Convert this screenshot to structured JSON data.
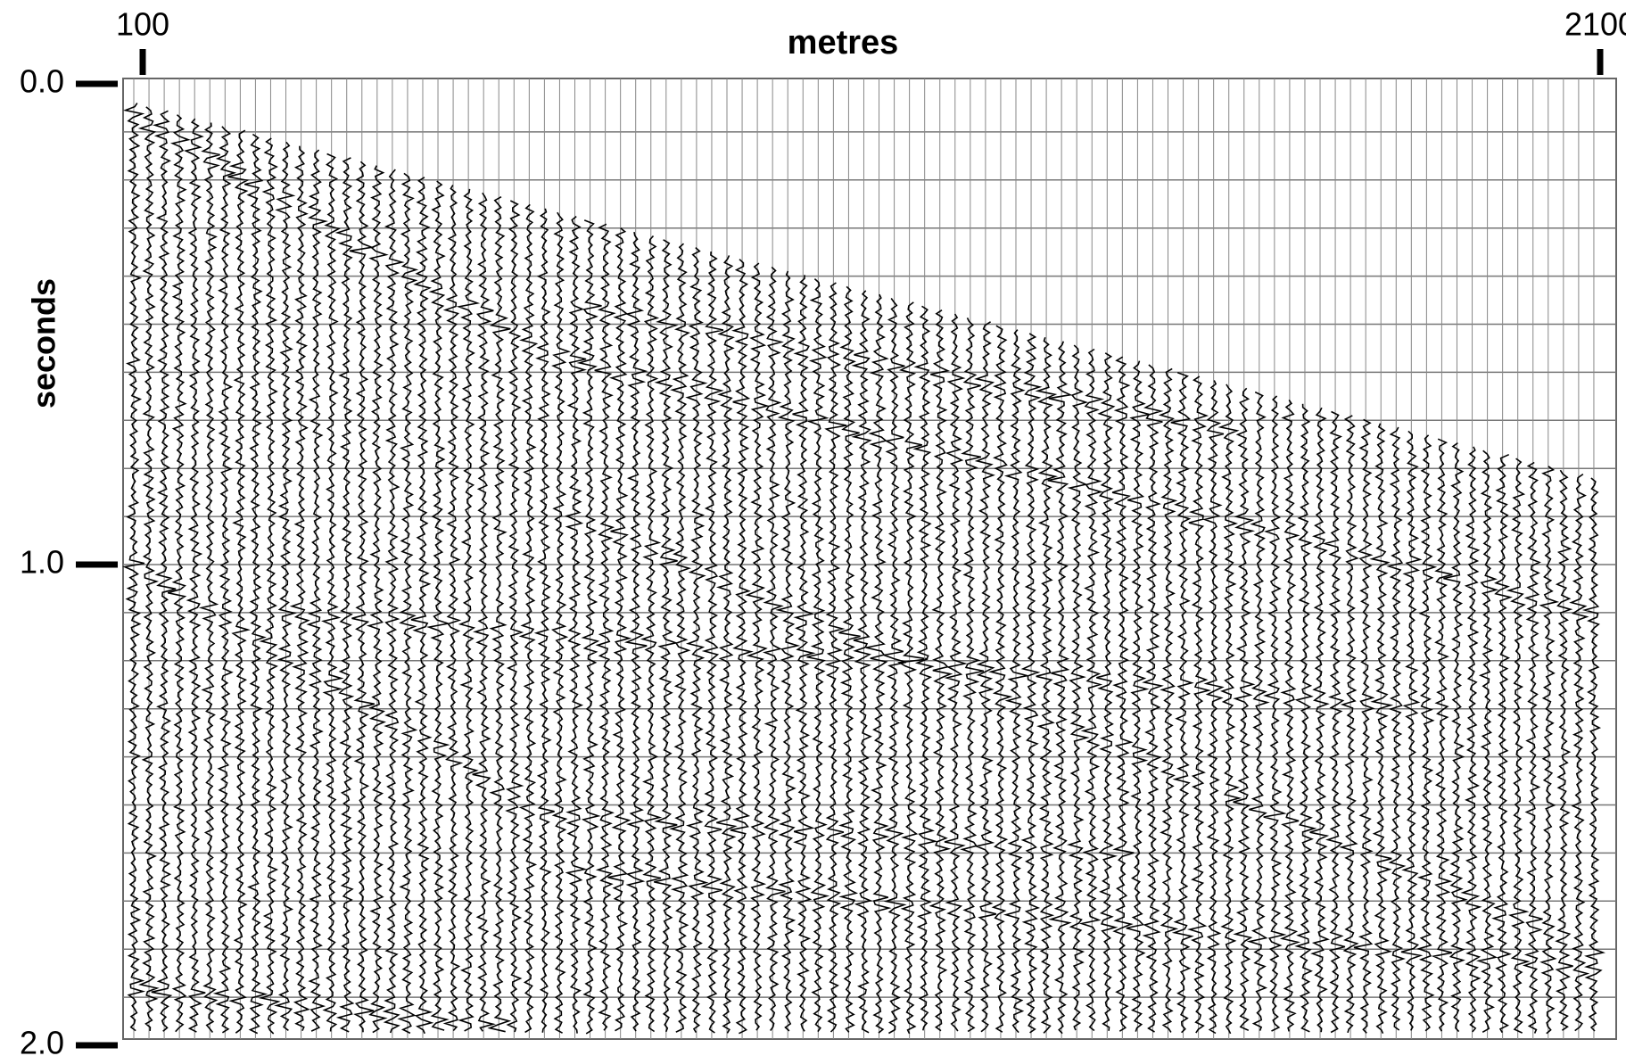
{
  "chart_data": {
    "type": "seismic",
    "xlabel": "metres",
    "ylabel": "seconds",
    "xlim": [
      100,
      2100
    ],
    "xticks": [
      100,
      2100
    ],
    "ylim": [
      0,
      2
    ],
    "y_inverted": true,
    "yticks": [
      {
        "value": 0,
        "label": "0.0"
      },
      {
        "value": 1,
        "label": "1.0"
      },
      {
        "value": 2,
        "label": "2.0"
      }
    ],
    "color": "#000000"
  }
}
